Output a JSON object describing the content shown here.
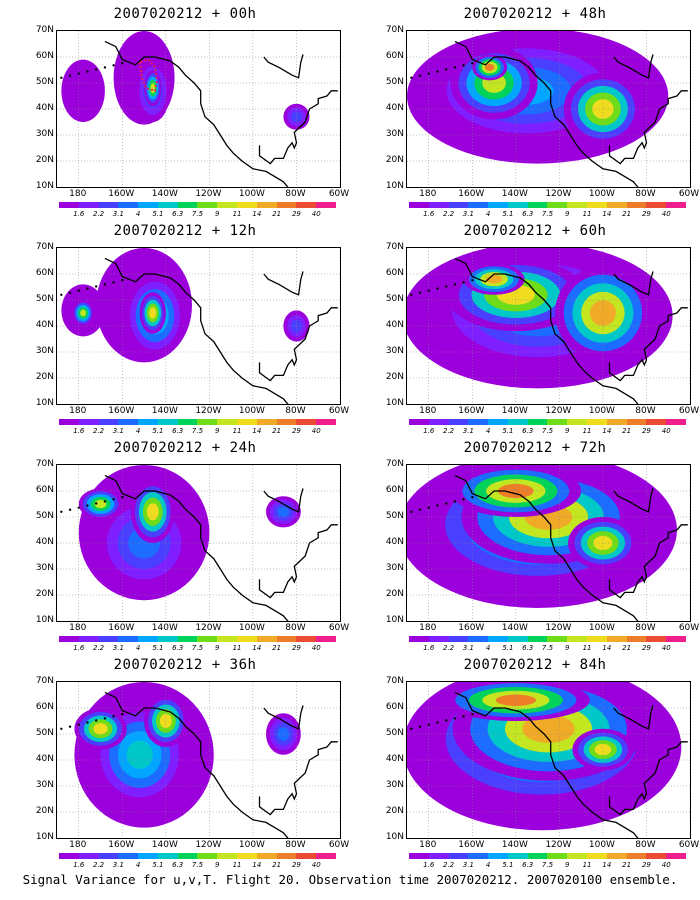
{
  "panels": [
    {
      "title": "2007020212 + 00h"
    },
    {
      "title": "2007020212 + 48h"
    },
    {
      "title": "2007020212 + 12h"
    },
    {
      "title": "2007020212 + 60h"
    },
    {
      "title": "2007020212 + 24h"
    },
    {
      "title": "2007020212 + 72h"
    },
    {
      "title": "2007020212 + 36h"
    },
    {
      "title": "2007020212 + 84h"
    }
  ],
  "lat_labels": [
    "70N",
    "60N",
    "50N",
    "40N",
    "30N",
    "20N",
    "10N"
  ],
  "lon_labels": [
    "180",
    "160W",
    "140W",
    "120W",
    "100W",
    "80W",
    "60W"
  ],
  "colorbar": {
    "colors": [
      "#9b00dc",
      "#7f1fff",
      "#4a3fff",
      "#1c6cff",
      "#00a6ff",
      "#00c8c8",
      "#00d25a",
      "#6fdc1a",
      "#c3e620",
      "#f0dc1e",
      "#f0aa28",
      "#ee7d2a",
      "#eb4b32",
      "#ee1e8c"
    ],
    "labels": [
      "1.6",
      "2.2",
      "3.1",
      "4",
      "5.1",
      "6.3",
      "7.5",
      "9",
      "11",
      "14",
      "21",
      "29",
      "40"
    ]
  },
  "caption": "Signal Variance for u,v,T. Flight 20. Observation time 2007020212. 2007020100 ensemble."
}
